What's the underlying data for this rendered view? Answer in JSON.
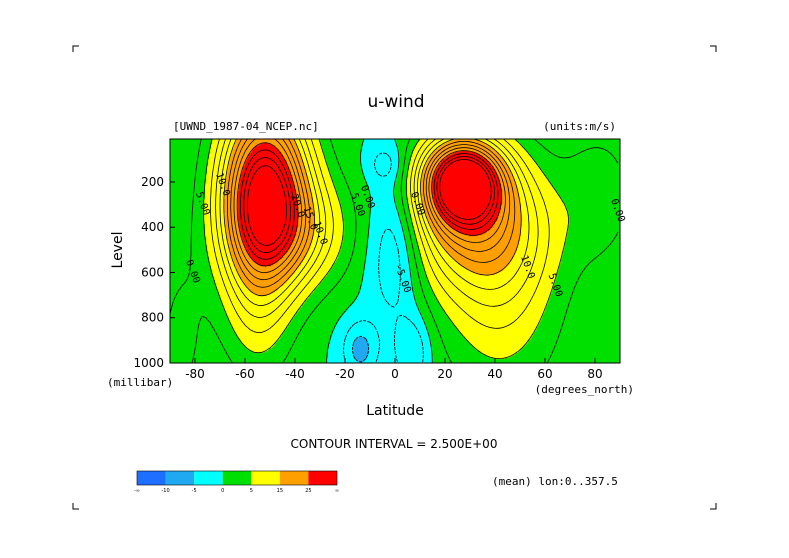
{
  "chart_data": {
    "type": "heatmap",
    "title": "u-wind",
    "dataset_label": "[UWND_1987-04_NCEP.nc]",
    "units_label": "(units:m/s)",
    "xlabel": "Latitude",
    "xunits": "(degrees_north)",
    "ylabel": "Level",
    "yunits": "(millibar)",
    "xlim": [
      -90,
      90
    ],
    "ylim": [
      1000,
      10
    ],
    "y_inverted": true,
    "x_ticks": [
      -80,
      -60,
      -40,
      -20,
      0,
      20,
      40,
      60,
      80
    ],
    "y_ticks": [
      200,
      400,
      600,
      800,
      1000
    ],
    "contour_interval_text": "CONTOUR INTERVAL = 2.500E+00",
    "mean_text": "(mean) lon:0..357.5",
    "levels": [
      -10,
      -5,
      0,
      5,
      15,
      25
    ],
    "colorbar": {
      "labels": [
        "-∞",
        "-10",
        "-5",
        "0",
        "5",
        "15",
        "25",
        "∞"
      ],
      "colors": [
        "#1e6fff",
        "#20a8f0",
        "#00ffff",
        "#00e000",
        "#ffff00",
        "#ffa000",
        "#ff0000"
      ]
    },
    "contour_labels": [
      {
        "text": "10.0",
        "lat": -70,
        "lev": 215
      },
      {
        "text": "5.00",
        "lat": -78,
        "lev": 300
      },
      {
        "text": "0.00",
        "lat": -82,
        "lev": 600
      },
      {
        "text": "20.0",
        "lat": -40,
        "lev": 310
      },
      {
        "text": "15.0",
        "lat": -35,
        "lev": 365
      },
      {
        "text": "10.0",
        "lat": -31,
        "lev": 430
      },
      {
        "text": "5.00",
        "lat": -16,
        "lev": 305
      },
      {
        "text": "0.00",
        "lat": -12,
        "lev": 270
      },
      {
        "text": "0.00",
        "lat": 8,
        "lev": 300
      },
      {
        "text": "-5.00",
        "lat": 2,
        "lev": 630
      },
      {
        "text": "10.0",
        "lat": 52,
        "lev": 580
      },
      {
        "text": "5.00",
        "lat": 63,
        "lev": 660
      },
      {
        "text": "0.00",
        "lat": 88,
        "lev": 330
      }
    ],
    "features": [
      {
        "name": "southern-jet",
        "lat": -50,
        "lev": 230,
        "peak": 30
      },
      {
        "name": "northern-jet",
        "lat": 27,
        "lev": 200,
        "peak": 32
      },
      {
        "name": "equatorial-easterlies",
        "lat": 0,
        "lev": 500,
        "peak": -7
      }
    ]
  }
}
